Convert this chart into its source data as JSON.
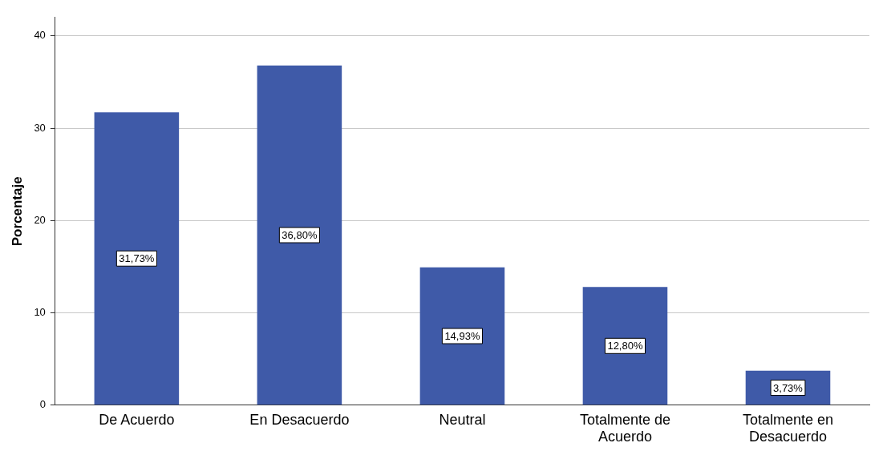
{
  "chart_data": {
    "type": "bar",
    "ylabel": "Porcentaje",
    "categories": [
      "De Acuerdo",
      "En Desacuerdo",
      "Neutral",
      "Totalmente de Acuerdo",
      "Totalmente en Desacuerdo"
    ],
    "values": [
      31.73,
      36.8,
      14.93,
      12.8,
      3.73
    ],
    "value_labels": [
      "31,73%",
      "36,80%",
      "14,93%",
      "12,80%",
      "3,73%"
    ],
    "color": "#3f5aa8",
    "ylim": [
      0,
      42
    ],
    "yticks": [
      0,
      10,
      20,
      30,
      40
    ],
    "grid": "y",
    "legend": false
  }
}
